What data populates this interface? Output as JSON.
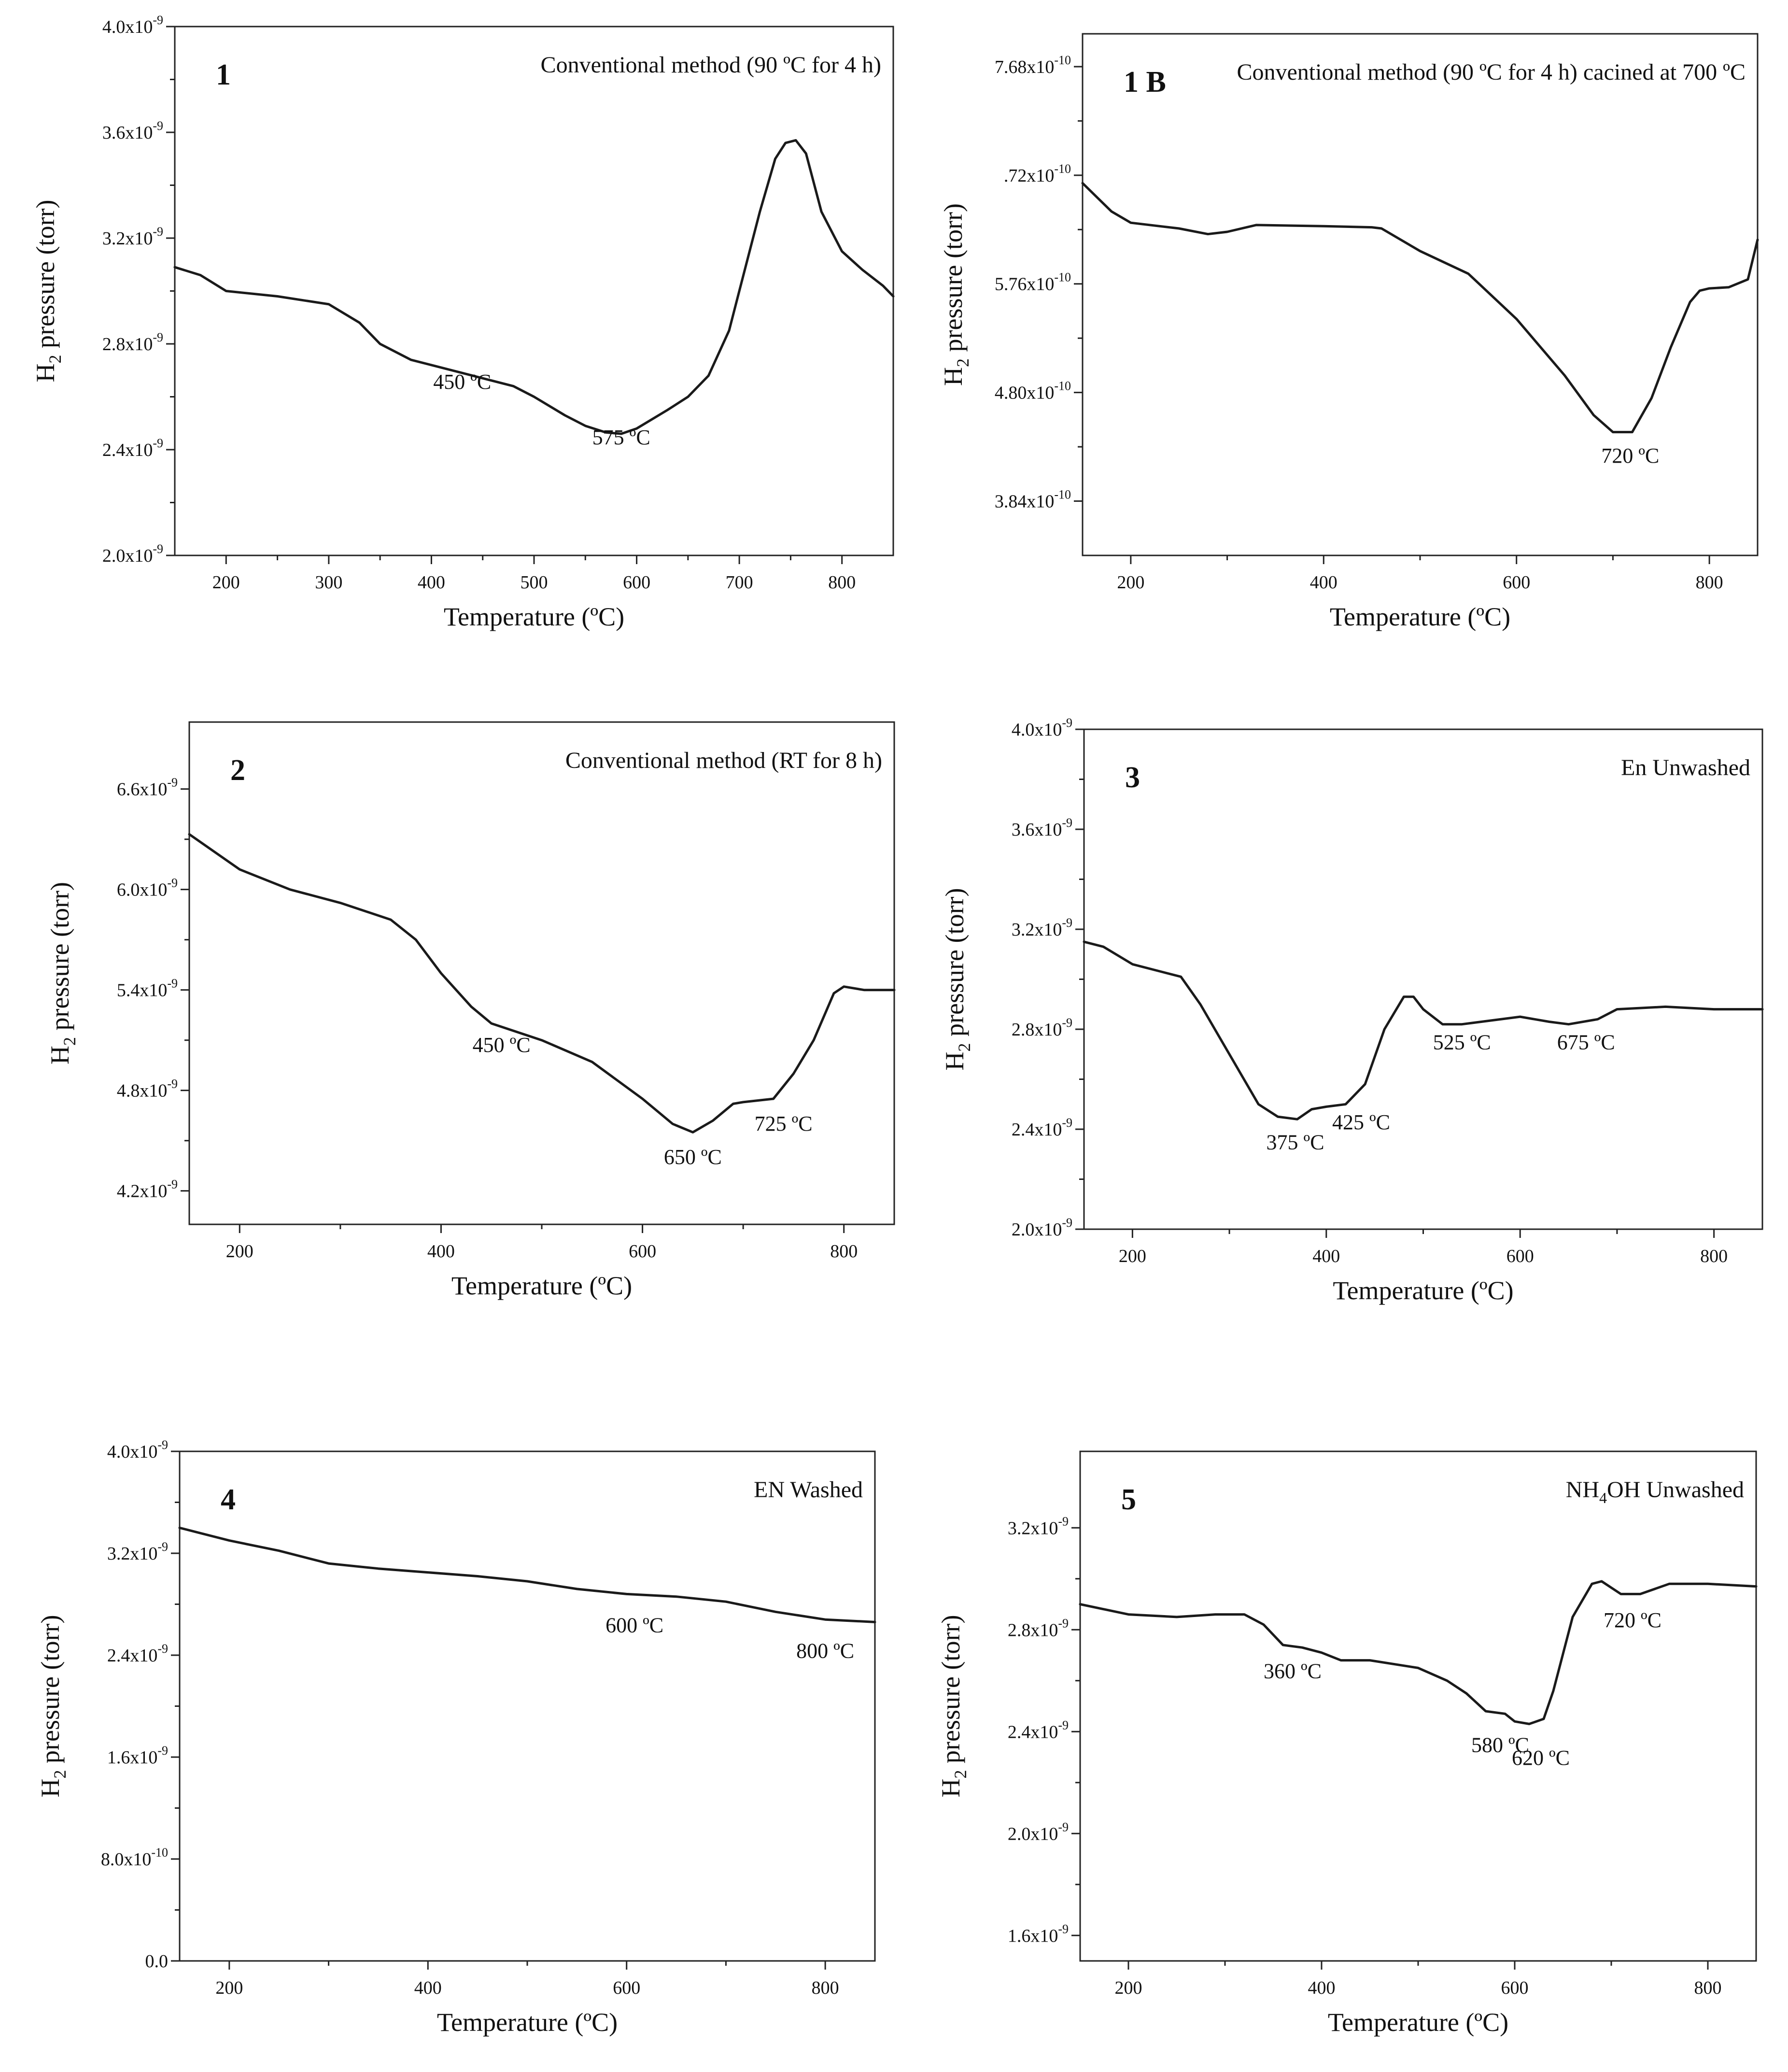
{
  "chart_data": [
    {
      "id": "p1",
      "type": "line",
      "panel_label": "1",
      "title": "Conventional method (90 ºC for 4 h)",
      "xlabel": "Temperature (ºC)",
      "ylabel_main": "H",
      "ylabel_sub": "2",
      "ylabel_rest": " pressure (torr)",
      "xlim": [
        150,
        850
      ],
      "ylim": [
        2e-09,
        4e-09
      ],
      "x_ticks": [
        200,
        300,
        400,
        500,
        600,
        700,
        800
      ],
      "x_tick_labels": [
        "200",
        "300",
        "400",
        "500",
        "600",
        "700",
        "800"
      ],
      "y_ticks": [
        2e-09,
        2.4e-09,
        2.8e-09,
        3.2e-09,
        3.6e-09,
        4e-09
      ],
      "y_tick_labels": [
        {
          "mant": "2.0x10",
          "exp": "-9"
        },
        {
          "mant": "2.4x10",
          "exp": "-9"
        },
        {
          "mant": "2.8x10",
          "exp": "-9"
        },
        {
          "mant": "3.2x10",
          "exp": "-9"
        },
        {
          "mant": "3.6x10",
          "exp": "-9"
        },
        {
          "mant": "4.0x10",
          "exp": "-9"
        }
      ],
      "series": [
        {
          "name": "H2 pressure",
          "x": [
            150,
            175,
            200,
            250,
            300,
            330,
            350,
            380,
            400,
            430,
            450,
            480,
            500,
            530,
            550,
            570,
            585,
            600,
            630,
            650,
            670,
            690,
            700,
            720,
            735,
            745,
            755,
            765,
            780,
            800,
            820,
            840,
            850
          ],
          "y": [
            3.09e-09,
            3.06e-09,
            3e-09,
            2.98e-09,
            2.95e-09,
            2.88e-09,
            2.8e-09,
            2.74e-09,
            2.72e-09,
            2.69e-09,
            2.67e-09,
            2.64e-09,
            2.6e-09,
            2.53e-09,
            2.49e-09,
            2.465e-09,
            2.46e-09,
            2.48e-09,
            2.55e-09,
            2.6e-09,
            2.68e-09,
            2.85e-09,
            3e-09,
            3.3e-09,
            3.5e-09,
            3.56e-09,
            3.57e-09,
            3.52e-09,
            3.3e-09,
            3.15e-09,
            3.08e-09,
            3.02e-09,
            2.98e-09
          ]
        }
      ],
      "annotations": [
        {
          "text": "450 ºC",
          "x": 430,
          "y": 2.63e-09
        },
        {
          "text": "575 ºC",
          "x": 585,
          "y": 2.42e-09
        }
      ]
    },
    {
      "id": "p1b",
      "type": "line",
      "panel_label": "1 B",
      "title": "Conventional method (90 ºC for 4 h) cacined at 700 ºC",
      "xlabel": "Temperature (ºC)",
      "ylabel_main": "H",
      "ylabel_sub": "2",
      "ylabel_rest": " pressure (torr)",
      "xlim": [
        150,
        850
      ],
      "ylim": [
        3.36e-10,
        7.97e-10
      ],
      "x_ticks": [
        200,
        400,
        600,
        800
      ],
      "x_tick_labels": [
        "200",
        "400",
        "600",
        "800"
      ],
      "y_ticks": [
        3.84e-10,
        4.8e-10,
        5.76e-10,
        6.72e-10,
        7.68e-10
      ],
      "y_tick_labels": [
        {
          "mant": "3.84x10",
          "exp": "-10"
        },
        {
          "mant": "4.80x10",
          "exp": "-10"
        },
        {
          "mant": "5.76x10",
          "exp": "-10"
        },
        {
          "mant": ".72x10",
          "exp": "-10"
        },
        {
          "mant": "7.68x10",
          "exp": "-10"
        }
      ],
      "series": [
        {
          "name": "H2 pressure",
          "x": [
            150,
            180,
            200,
            250,
            280,
            300,
            330,
            400,
            450,
            460,
            500,
            550,
            600,
            650,
            680,
            700,
            720,
            740,
            760,
            780,
            790,
            800,
            820,
            840,
            850
          ],
          "y": [
            6.65e-10,
            6.4e-10,
            6.3e-10,
            6.25e-10,
            6.2e-10,
            6.22e-10,
            6.28e-10,
            6.27e-10,
            6.26e-10,
            6.25e-10,
            6.05e-10,
            5.85e-10,
            5.45e-10,
            4.95e-10,
            4.6e-10,
            4.45e-10,
            4.45e-10,
            4.75e-10,
            5.2e-10,
            5.6e-10,
            5.7e-10,
            5.72e-10,
            5.73e-10,
            5.8e-10,
            6.15e-10
          ]
        }
      ],
      "annotations": [
        {
          "text": "720 ºC",
          "x": 718,
          "y": 4.18e-10
        }
      ]
    },
    {
      "id": "p2",
      "type": "line",
      "panel_label": "2",
      "title": "Conventional method (RT for 8 h)",
      "xlabel": "Temperature (ºC)",
      "ylabel_main": "H",
      "ylabel_sub": "2",
      "ylabel_rest": " pressure (torr)",
      "xlim": [
        150,
        850
      ],
      "ylim": [
        4e-09,
        7e-09
      ],
      "x_ticks": [
        200,
        400,
        600,
        800
      ],
      "x_tick_labels": [
        "200",
        "400",
        "600",
        "800"
      ],
      "y_ticks": [
        4.2e-09,
        4.8e-09,
        5.4e-09,
        6e-09,
        6.6e-09
      ],
      "y_tick_labels": [
        {
          "mant": "4.2x10",
          "exp": "-9"
        },
        {
          "mant": "4.8x10",
          "exp": "-9"
        },
        {
          "mant": "5.4x10",
          "exp": "-9"
        },
        {
          "mant": "6.0x10",
          "exp": "-9"
        },
        {
          "mant": "6.6x10",
          "exp": "-9"
        }
      ],
      "series": [
        {
          "name": "H2 pressure",
          "x": [
            150,
            200,
            250,
            300,
            350,
            375,
            400,
            430,
            450,
            500,
            550,
            600,
            630,
            650,
            670,
            690,
            700,
            730,
            750,
            770,
            790,
            800,
            820,
            850
          ],
          "y": [
            6.33e-09,
            6.12e-09,
            6e-09,
            5.92e-09,
            5.82e-09,
            5.7e-09,
            5.5e-09,
            5.3e-09,
            5.2e-09,
            5.1e-09,
            4.97e-09,
            4.75e-09,
            4.6e-09,
            4.55e-09,
            4.62e-09,
            4.72e-09,
            4.73e-09,
            4.75e-09,
            4.9e-09,
            5.1e-09,
            5.38e-09,
            5.42e-09,
            5.4e-09,
            5.4e-09
          ]
        }
      ],
      "annotations": [
        {
          "text": "450 ºC",
          "x": 460,
          "y": 5.03e-09
        },
        {
          "text": "650 ºC",
          "x": 650,
          "y": 4.36e-09
        },
        {
          "text": "725 ºC",
          "x": 740,
          "y": 4.56e-09
        }
      ]
    },
    {
      "id": "p3",
      "type": "line",
      "panel_label": "3",
      "title": "En Unwashed",
      "xlabel": "Temperature (ºC)",
      "ylabel_main": "H",
      "ylabel_sub": "2",
      "ylabel_rest": " pressure (torr)",
      "xlim": [
        150,
        850
      ],
      "ylim": [
        2e-09,
        4e-09
      ],
      "x_ticks": [
        200,
        400,
        600,
        800
      ],
      "x_tick_labels": [
        "200",
        "400",
        "600",
        "800"
      ],
      "y_ticks": [
        2e-09,
        2.4e-09,
        2.8e-09,
        3.2e-09,
        3.6e-09,
        4e-09
      ],
      "y_tick_labels": [
        {
          "mant": "2.0x10",
          "exp": "-9"
        },
        {
          "mant": "2.4x10",
          "exp": "-9"
        },
        {
          "mant": "2.8x10",
          "exp": "-9"
        },
        {
          "mant": "3.2x10",
          "exp": "-9"
        },
        {
          "mant": "3.6x10",
          "exp": "-9"
        },
        {
          "mant": "4.0x10",
          "exp": "-9"
        }
      ],
      "series": [
        {
          "name": "H2 pressure",
          "x": [
            150,
            170,
            200,
            230,
            250,
            270,
            300,
            330,
            350,
            370,
            385,
            400,
            420,
            440,
            460,
            480,
            490,
            500,
            520,
            540,
            560,
            600,
            630,
            650,
            680,
            700,
            750,
            800,
            850
          ],
          "y": [
            3.15e-09,
            3.13e-09,
            3.06e-09,
            3.03e-09,
            3.01e-09,
            2.9e-09,
            2.7e-09,
            2.5e-09,
            2.45e-09,
            2.44e-09,
            2.48e-09,
            2.49e-09,
            2.5e-09,
            2.58e-09,
            2.8e-09,
            2.93e-09,
            2.93e-09,
            2.88e-09,
            2.82e-09,
            2.82e-09,
            2.83e-09,
            2.85e-09,
            2.83e-09,
            2.82e-09,
            2.84e-09,
            2.88e-09,
            2.89e-09,
            2.88e-09,
            2.88e-09
          ]
        }
      ],
      "annotations": [
        {
          "text": "375 ºC",
          "x": 368,
          "y": 2.32e-09
        },
        {
          "text": "425 ºC",
          "x": 436,
          "y": 2.4e-09
        },
        {
          "text": "525 ºC",
          "x": 540,
          "y": 2.72e-09
        },
        {
          "text": "675 ºC",
          "x": 668,
          "y": 2.72e-09
        }
      ]
    },
    {
      "id": "p4",
      "type": "line",
      "panel_label": "4",
      "title": "EN Washed",
      "xlabel": "Temperature (ºC)",
      "ylabel_main": "H",
      "ylabel_sub": "2",
      "ylabel_rest": " pressure (torr)",
      "xlim": [
        150,
        850
      ],
      "ylim": [
        0.0,
        4e-09
      ],
      "x_ticks": [
        200,
        400,
        600,
        800
      ],
      "x_tick_labels": [
        "200",
        "400",
        "600",
        "800"
      ],
      "y_ticks": [
        0.0,
        8e-10,
        1.6e-09,
        2.4e-09,
        3.2e-09,
        4e-09
      ],
      "y_tick_labels": [
        {
          "mant": "0.0",
          "exp": ""
        },
        {
          "mant": "8.0x10",
          "exp": "-10"
        },
        {
          "mant": "1.6x10",
          "exp": "-9"
        },
        {
          "mant": "2.4x10",
          "exp": "-9"
        },
        {
          "mant": "3.2x10",
          "exp": "-9"
        },
        {
          "mant": "4.0x10",
          "exp": "-9"
        }
      ],
      "series": [
        {
          "name": "H2 pressure",
          "x": [
            150,
            200,
            250,
            300,
            350,
            400,
            450,
            500,
            550,
            600,
            650,
            700,
            750,
            800,
            850
          ],
          "y": [
            3.4e-09,
            3.3e-09,
            3.22e-09,
            3.12e-09,
            3.08e-09,
            3.05e-09,
            3.02e-09,
            2.98e-09,
            2.92e-09,
            2.88e-09,
            2.86e-09,
            2.82e-09,
            2.74e-09,
            2.68e-09,
            2.66e-09
          ]
        }
      ],
      "annotations": [
        {
          "text": "600 ºC",
          "x": 608,
          "y": 2.58e-09
        },
        {
          "text": "800 ºC",
          "x": 800,
          "y": 2.38e-09
        }
      ]
    },
    {
      "id": "p5",
      "type": "line",
      "panel_label": "5",
      "title_main": "NH",
      "title_sub": "4",
      "title_rest": "OH Unwashed",
      "xlabel": "Temperature (ºC)",
      "ylabel_main": "H",
      "ylabel_sub": "2",
      "ylabel_rest": " pressure (torr)",
      "xlim": [
        150,
        850
      ],
      "ylim": [
        1.5e-09,
        3.5e-09
      ],
      "x_ticks": [
        200,
        400,
        600,
        800
      ],
      "x_tick_labels": [
        "200",
        "400",
        "600",
        "800"
      ],
      "y_ticks": [
        1.6e-09,
        2e-09,
        2.4e-09,
        2.8e-09,
        3.2e-09
      ],
      "y_tick_labels": [
        {
          "mant": "1.6x10",
          "exp": "-9"
        },
        {
          "mant": "2.0x10",
          "exp": "-9"
        },
        {
          "mant": "2.4x10",
          "exp": "-9"
        },
        {
          "mant": "2.8x10",
          "exp": "-9"
        },
        {
          "mant": "3.2x10",
          "exp": "-9"
        }
      ],
      "series": [
        {
          "name": "H2 pressure",
          "x": [
            150,
            200,
            250,
            290,
            320,
            340,
            360,
            380,
            400,
            420,
            450,
            500,
            530,
            550,
            570,
            590,
            600,
            615,
            630,
            640,
            660,
            680,
            690,
            710,
            730,
            760,
            800,
            850
          ],
          "y": [
            2.9e-09,
            2.86e-09,
            2.85e-09,
            2.86e-09,
            2.86e-09,
            2.82e-09,
            2.74e-09,
            2.73e-09,
            2.71e-09,
            2.68e-09,
            2.68e-09,
            2.65e-09,
            2.6e-09,
            2.55e-09,
            2.48e-09,
            2.47e-09,
            2.44e-09,
            2.43e-09,
            2.45e-09,
            2.56e-09,
            2.85e-09,
            2.98e-09,
            2.99e-09,
            2.94e-09,
            2.94e-09,
            2.98e-09,
            2.98e-09,
            2.97e-09
          ]
        }
      ],
      "annotations": [
        {
          "text": "360 ºC",
          "x": 370,
          "y": 2.61e-09
        },
        {
          "text": "580 ºC",
          "x": 585,
          "y": 2.32e-09
        },
        {
          "text": "620 ºC",
          "x": 627,
          "y": 2.27e-09
        },
        {
          "text": "720 ºC",
          "x": 722,
          "y": 2.81e-09
        }
      ]
    }
  ]
}
